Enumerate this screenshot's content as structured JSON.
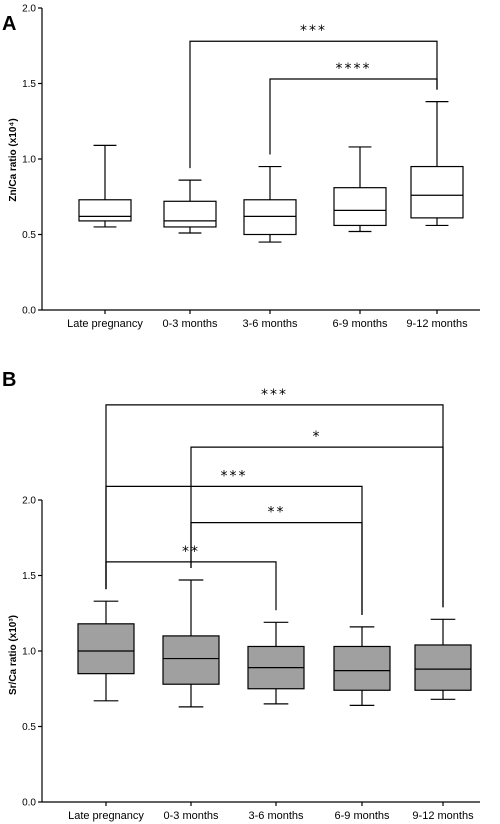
{
  "chart_data": [
    {
      "type": "box",
      "panel_label": "A",
      "ylabel": "Zn/Ca ratio (x10⁴)",
      "ylim": [
        0,
        2.0
      ],
      "yticks": [
        "0.0",
        "0.5",
        "1.0",
        "1.5",
        "2.0"
      ],
      "categories": [
        "Late pregnancy",
        "0-3 months",
        "3-6 months",
        "6-9 months",
        "9-12 months"
      ],
      "box_fill": "#ffffff",
      "boxes": [
        {
          "min": 0.55,
          "q1": 0.59,
          "median": 0.62,
          "q3": 0.73,
          "max": 1.09
        },
        {
          "min": 0.51,
          "q1": 0.55,
          "median": 0.59,
          "q3": 0.72,
          "max": 0.86
        },
        {
          "min": 0.45,
          "q1": 0.5,
          "median": 0.62,
          "q3": 0.73,
          "max": 0.95
        },
        {
          "min": 0.52,
          "q1": 0.56,
          "median": 0.66,
          "q3": 0.81,
          "max": 1.08
        },
        {
          "min": 0.56,
          "q1": 0.61,
          "median": 0.76,
          "q3": 0.95,
          "max": 1.38
        }
      ],
      "significance": [
        {
          "from": 1,
          "to": 4,
          "label": "***",
          "level": 1.78
        },
        {
          "from": 2,
          "to": 4,
          "label": "****",
          "level": 1.53
        }
      ]
    },
    {
      "type": "box",
      "panel_label": "B",
      "ylabel": "Sr/Ca ratio (x10³)",
      "ylim": [
        0,
        2.0
      ],
      "yticks": [
        "0.0",
        "0.5",
        "1.0",
        "1.5",
        "2.0"
      ],
      "categories": [
        "Late pregnancy",
        "0-3 months",
        "3-6 months",
        "6-9 months",
        "9-12 months"
      ],
      "box_fill": "#a0a0a0",
      "boxes": [
        {
          "min": 0.67,
          "q1": 0.85,
          "median": 1.0,
          "q3": 1.18,
          "max": 1.33
        },
        {
          "min": 0.63,
          "q1": 0.78,
          "median": 0.95,
          "q3": 1.1,
          "max": 1.47
        },
        {
          "min": 0.65,
          "q1": 0.75,
          "median": 0.89,
          "q3": 1.03,
          "max": 1.19
        },
        {
          "min": 0.64,
          "q1": 0.74,
          "median": 0.87,
          "q3": 1.03,
          "max": 1.16
        },
        {
          "min": 0.68,
          "q1": 0.74,
          "median": 0.88,
          "q3": 1.04,
          "max": 1.21
        }
      ],
      "significance": [
        {
          "from": 0,
          "to": 4,
          "label": "***",
          "level": 2.63
        },
        {
          "from": 1,
          "to": 4,
          "label": "*",
          "level": 2.35
        },
        {
          "from": 0,
          "to": 3,
          "label": "***",
          "level": 2.09
        },
        {
          "from": 1,
          "to": 3,
          "label": "**",
          "level": 1.85
        },
        {
          "from": 0,
          "to": 2,
          "label": "**",
          "level": 1.59
        }
      ]
    }
  ]
}
